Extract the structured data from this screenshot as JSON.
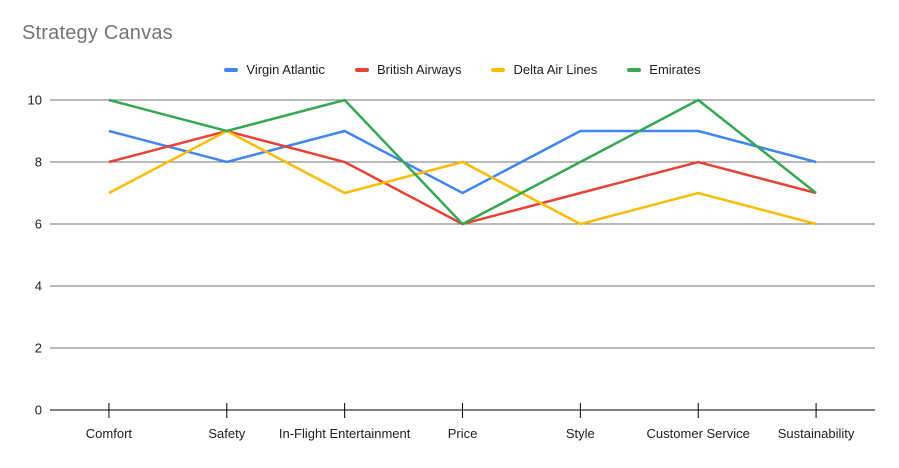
{
  "title": "Strategy Canvas",
  "chart_data": {
    "type": "line",
    "title": "Strategy Canvas",
    "categories": [
      "Comfort",
      "Safety",
      "In-Flight Entertainment",
      "Price",
      "Style",
      "Customer Service",
      "Sustainability"
    ],
    "series": [
      {
        "name": "Virgin Atlantic",
        "color": "#4285F4",
        "values": [
          9,
          8,
          9,
          7,
          9,
          9,
          8
        ]
      },
      {
        "name": "British Airways",
        "color": "#EA4335",
        "values": [
          8,
          9,
          8,
          6,
          7,
          8,
          7
        ]
      },
      {
        "name": "Delta Air Lines",
        "color": "#FBBC04",
        "values": [
          7,
          9,
          7,
          8,
          6,
          7,
          6
        ]
      },
      {
        "name": "Emirates",
        "color": "#34A853",
        "values": [
          10,
          9,
          10,
          6,
          8,
          10,
          7
        ]
      }
    ],
    "xlabel": "",
    "ylabel": "",
    "ylim": [
      0,
      10
    ],
    "yticks": [
      0,
      2,
      4,
      6,
      8,
      10
    ],
    "grid": true,
    "legend_position": "top"
  },
  "colors": {
    "background": "#ffffff",
    "title_text": "#757575",
    "axis_text": "#212121",
    "gridline": "#757575",
    "axis_line": "#000000"
  }
}
